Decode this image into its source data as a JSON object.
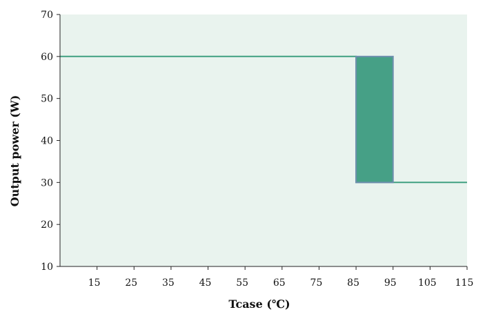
{
  "chart_data": {
    "type": "line",
    "title": "",
    "xlabel": "Tcase (℃)",
    "ylabel": "Output power (W)",
    "xlim": [
      5,
      115
    ],
    "ylim": [
      10,
      70
    ],
    "x_ticks": [
      15,
      25,
      35,
      45,
      55,
      65,
      75,
      85,
      95,
      105,
      115
    ],
    "y_ticks": [
      10,
      20,
      30,
      40,
      50,
      60,
      70
    ],
    "grid": false,
    "series": [
      {
        "color": "#3f9f80",
        "points": [
          [
            5,
            60
          ],
          [
            85,
            60
          ],
          [
            85,
            30
          ],
          [
            95,
            30
          ],
          [
            115,
            30
          ]
        ]
      }
    ],
    "shaded_region": {
      "x": [
        85,
        95
      ],
      "y": [
        30,
        60
      ],
      "fill": "#46a086",
      "stroke": "#6f8fae"
    },
    "colors": {
      "plot_background": "#e9f3ee",
      "line": "#3f9f80",
      "axis": "#222222"
    }
  }
}
